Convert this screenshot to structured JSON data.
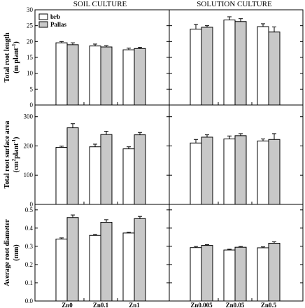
{
  "headers": {
    "left": "SOIL CULTURE",
    "right": "SOLUTION CULTURE"
  },
  "legend": [
    {
      "label": "brb",
      "color": "#ffffff"
    },
    {
      "label": "Pallas",
      "color": "#c8c8c8"
    }
  ],
  "colors": {
    "brb": "#ffffff",
    "pallas": "#c8c8c8",
    "axis": "#000000"
  },
  "x_labels": [
    "Zn0",
    "Zn0.1",
    "Zn1",
    "Zn0.005",
    "Zn0.05",
    "Zn0.5"
  ],
  "y_labels": [
    [
      "Total root length",
      "(m plant",
      "-1",
      ")"
    ],
    [
      "Total root surface area",
      "(cm",
      "2",
      "plant",
      "-1",
      ")"
    ],
    [
      "Average root diameter",
      "(mm)"
    ]
  ],
  "chart_data": [
    {
      "type": "bar",
      "ylabel": "Total root length (m plant-1)",
      "ylim": [
        0,
        30
      ],
      "yticks": [
        0,
        5,
        10,
        15,
        20,
        25,
        30
      ],
      "categories": [
        "Zn0",
        "Zn0.1",
        "Zn1",
        "Zn0.005",
        "Zn0.05",
        "Zn0.5"
      ],
      "series": [
        {
          "name": "brb",
          "values": [
            19.6,
            18.6,
            17.4,
            23.9,
            26.8,
            24.7
          ],
          "errors": [
            0.4,
            0.6,
            0.5,
            1.5,
            1.0,
            0.9
          ]
        },
        {
          "name": "Pallas",
          "values": [
            19.0,
            18.3,
            17.8,
            24.5,
            26.3,
            23.0
          ],
          "errors": [
            0.6,
            0.4,
            0.4,
            0.5,
            0.9,
            1.6
          ]
        }
      ]
    },
    {
      "type": "bar",
      "ylabel": "Total root surface area (cm2 plant-1)",
      "ylim": [
        0,
        340
      ],
      "yticks": [
        0,
        100,
        200,
        300
      ],
      "categories": [
        "Zn0",
        "Zn0.1",
        "Zn1",
        "Zn0.005",
        "Zn0.05",
        "Zn0.5"
      ],
      "series": [
        {
          "name": "brb",
          "values": [
            195,
            197,
            190,
            210,
            224,
            217
          ],
          "errors": [
            4,
            9,
            7,
            12,
            10,
            7
          ]
        },
        {
          "name": "Pallas",
          "values": [
            262,
            239,
            238,
            230,
            235,
            222
          ],
          "errors": [
            14,
            11,
            8,
            8,
            7,
            20
          ]
        }
      ]
    },
    {
      "type": "bar",
      "ylabel": "Average root diameter (mm)",
      "ylim": [
        0,
        0.53
      ],
      "yticks": [
        0.0,
        0.1,
        0.2,
        0.3,
        0.4,
        0.5
      ],
      "categories": [
        "Zn0",
        "Zn0.1",
        "Zn1",
        "Zn0.005",
        "Zn0.05",
        "Zn0.5"
      ],
      "series": [
        {
          "name": "brb",
          "values": [
            0.34,
            0.36,
            0.373,
            0.293,
            0.28,
            0.292
          ],
          "errors": [
            0.006,
            0.005,
            0.004,
            0.006,
            0.004,
            0.005
          ]
        },
        {
          "name": "Pallas",
          "values": [
            0.458,
            0.432,
            0.452,
            0.305,
            0.295,
            0.317
          ],
          "errors": [
            0.014,
            0.014,
            0.012,
            0.004,
            0.004,
            0.008
          ]
        }
      ]
    }
  ]
}
